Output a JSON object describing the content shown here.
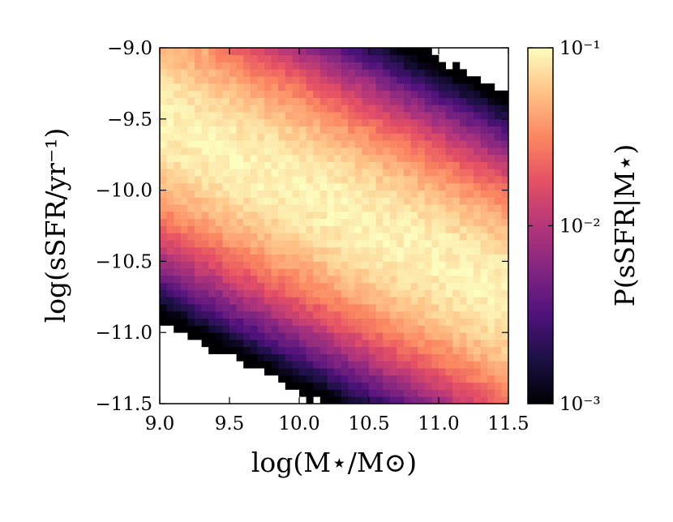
{
  "chart_data": {
    "type": "heatmap",
    "title": "",
    "xlabel": "log(M⋆/M⊙)",
    "ylabel": "log(sSFR/yr⁻¹)",
    "xlim": [
      9.0,
      11.5
    ],
    "ylim": [
      -11.5,
      -9.0
    ],
    "xticks": [
      "9.0",
      "9.5",
      "10.0",
      "10.5",
      "11.0",
      "11.5"
    ],
    "yticks": [
      "−9.0",
      "−9.5",
      "−10.0",
      "−10.5",
      "−11.0",
      "−11.5"
    ],
    "bins": {
      "nx": 50,
      "ny": 50
    },
    "ridge": {
      "x": [
        9.0,
        11.5
      ],
      "y": [
        -9.5,
        -10.75
      ]
    },
    "width_dex": 0.45,
    "peak_probability": 0.09,
    "colorbar": {
      "label": "P(sSFR|M⋆)",
      "scale": "log",
      "range": [
        0.001,
        0.1
      ],
      "tick_labels": [
        "10⁻¹",
        "10⁻²",
        "10⁻³"
      ],
      "colormap": "magma",
      "colors": [
        "#000004",
        "#1c1044",
        "#4f127b",
        "#812581",
        "#b5367a",
        "#e55064",
        "#fb8761",
        "#fec287",
        "#fcfdbf"
      ]
    },
    "grid": false,
    "legend": "none"
  }
}
